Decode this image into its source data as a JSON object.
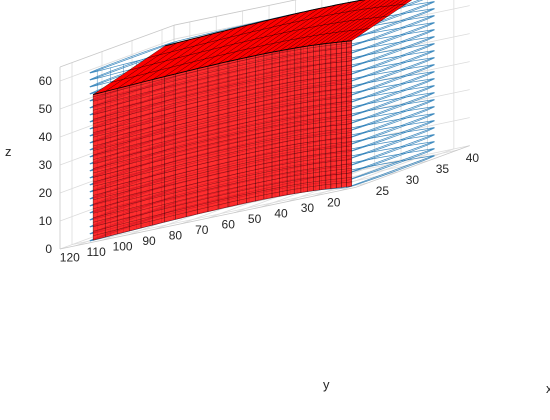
{
  "chart_data": {
    "type": "surface-3d",
    "title": "",
    "axes": {
      "x": {
        "label": "x",
        "ticks": [
          25,
          30,
          35,
          40
        ],
        "range": [
          23,
          42
        ]
      },
      "y": {
        "label": "y",
        "ticks": [
          20,
          30,
          40,
          50,
          60,
          70,
          80,
          90,
          100,
          110,
          120
        ],
        "range": [
          14,
          126
        ]
      },
      "z": {
        "label": "z",
        "ticks": [
          0,
          10,
          20,
          30,
          40,
          50,
          60
        ],
        "range": [
          0,
          65
        ]
      }
    },
    "grid": true,
    "legend": "none",
    "series": [
      {
        "kind": "mesh-outline",
        "color": "#1f77b4",
        "x_range": [
          24,
          41
        ],
        "y_range": [
          18,
          122
        ],
        "z_range": [
          0,
          60
        ],
        "wall_sag_x": 7,
        "cap_radius": 3.5
      },
      {
        "kind": "surface",
        "face_color": "#ff0000",
        "edge_color": "#000000",
        "x_range": [
          25,
          37
        ],
        "y_range": [
          20,
          118
        ],
        "z_range": [
          0,
          60
        ],
        "top_band_z": [
          50,
          60
        ],
        "wall_sag_x": 5.5
      }
    ],
    "colors": {
      "mesh": "#1f77b4",
      "surface": "#ff0000",
      "edge": "#000000",
      "grid": "#dcdcdc"
    }
  }
}
